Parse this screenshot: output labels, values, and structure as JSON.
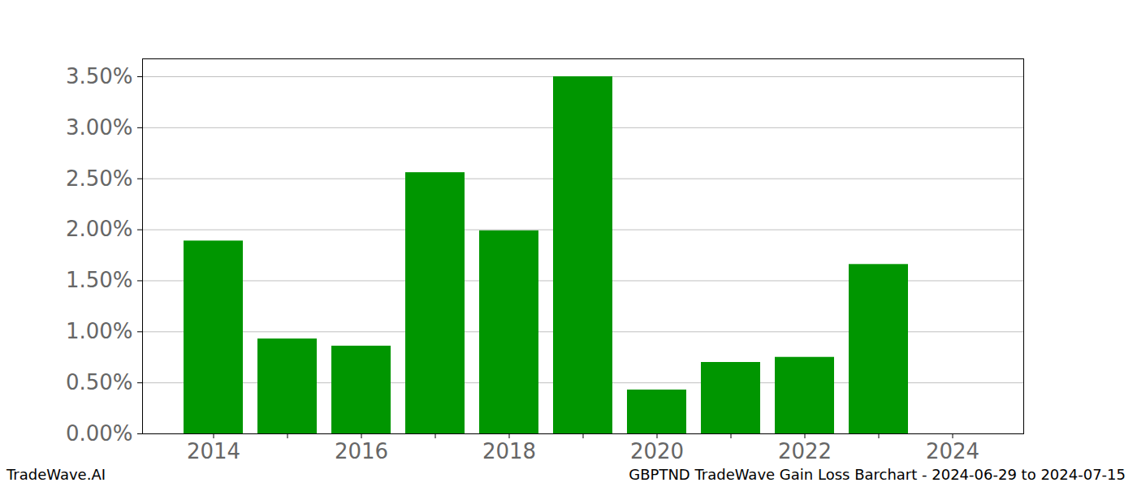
{
  "chart_data": {
    "type": "bar",
    "title": "GBPTND TradeWave Gain Loss Barchart - 2024-06-29 to 2024-07-15",
    "source": "TradeWave.AI",
    "categories": [
      "2014",
      null,
      "2016",
      null,
      "2018",
      null,
      "2020",
      null,
      "2022",
      null,
      "2024"
    ],
    "values": [
      1.89,
      0.93,
      0.86,
      2.56,
      1.99,
      3.5,
      0.43,
      0.7,
      0.75,
      1.66,
      0
    ],
    "color": "#009600",
    "ylim": [
      0,
      3.675
    ],
    "yticks": [
      {
        "value": 0,
        "label": "0.00%"
      },
      {
        "value": 0.5,
        "label": "0.50%"
      },
      {
        "value": 1,
        "label": "1.00%"
      },
      {
        "value": 1.5,
        "label": "1.50%"
      },
      {
        "value": 2,
        "label": "2.00%"
      },
      {
        "value": 2.5,
        "label": "2.50%"
      },
      {
        "value": 3,
        "label": "3.00%"
      },
      {
        "value": 3.5,
        "label": "3.50%"
      }
    ],
    "grid": true
  }
}
